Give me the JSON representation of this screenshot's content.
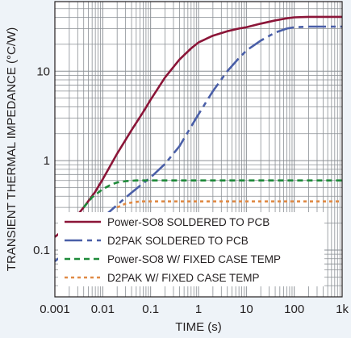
{
  "chart_data": {
    "type": "line",
    "title": "",
    "xlabel": "TIME (s)",
    "ylabel": "TRANSIENT THERMAL IMPEDANCE (°C/W)",
    "x_scale": "log",
    "y_scale": "log",
    "xlim": [
      0.001,
      1000
    ],
    "ylim": [
      0.03,
      60
    ],
    "x_ticks": [
      {
        "value": 0.001,
        "label": "0.001"
      },
      {
        "value": 0.01,
        "label": "0.01"
      },
      {
        "value": 0.1,
        "label": "0.1"
      },
      {
        "value": 1,
        "label": "1"
      },
      {
        "value": 10,
        "label": "10"
      },
      {
        "value": 100,
        "label": "100"
      },
      {
        "value": 1000,
        "label": "1k"
      }
    ],
    "y_ticks": [
      {
        "value": 0.1,
        "label": "0.1"
      },
      {
        "value": 1,
        "label": "1"
      },
      {
        "value": 10,
        "label": "10"
      }
    ],
    "grid": true,
    "legend_position": "bottom",
    "series": [
      {
        "name": "Power-SO8 SOLDERED TO PCB",
        "color": "#8b1538",
        "style": "solid",
        "x": [
          0.001,
          0.002,
          0.004,
          0.007,
          0.01,
          0.02,
          0.04,
          0.07,
          0.1,
          0.2,
          0.4,
          0.7,
          1,
          2,
          4,
          7,
          10,
          20,
          40,
          70,
          100,
          200,
          400,
          1000
        ],
        "y": [
          0.14,
          0.19,
          0.3,
          0.45,
          0.62,
          1.2,
          2.2,
          3.5,
          4.8,
          8.5,
          13.5,
          18,
          21,
          25,
          28,
          30,
          31,
          34,
          37,
          39,
          40,
          40.5,
          40.5,
          40.5
        ]
      },
      {
        "name": "D2PAK SOLDERED TO PCB",
        "color": "#4a5fa8",
        "style": "longdash",
        "x": [
          0.001,
          0.002,
          0.004,
          0.007,
          0.01,
          0.02,
          0.04,
          0.07,
          0.1,
          0.2,
          0.4,
          0.7,
          1,
          2,
          4,
          7,
          10,
          20,
          40,
          70,
          100,
          200,
          400,
          1000
        ],
        "y": [
          0.075,
          0.1,
          0.14,
          0.19,
          0.23,
          0.32,
          0.44,
          0.56,
          0.65,
          0.92,
          1.45,
          2.4,
          3.3,
          6,
          10,
          14,
          17,
          22,
          27,
          30,
          31,
          31.5,
          31.5,
          31.5
        ]
      },
      {
        "name": "Power-SO8 W/ FIXED CASE TEMP",
        "color": "#1e8a3a",
        "style": "dash",
        "x": [
          0.004,
          0.006,
          0.01,
          0.015,
          0.02,
          0.03,
          0.05,
          0.1,
          1,
          10,
          100,
          1000
        ],
        "y": [
          0.3,
          0.39,
          0.48,
          0.54,
          0.57,
          0.59,
          0.6,
          0.6,
          0.6,
          0.6,
          0.6,
          0.6
        ]
      },
      {
        "name": "D2PAK W/ FIXED CASE TEMP",
        "color": "#e08a45",
        "style": "dot",
        "x": [
          0.02,
          0.03,
          0.04,
          0.06,
          0.1,
          1,
          10,
          100,
          1000
        ],
        "y": [
          0.3,
          0.33,
          0.34,
          0.35,
          0.35,
          0.35,
          0.35,
          0.35,
          0.35
        ]
      }
    ]
  }
}
